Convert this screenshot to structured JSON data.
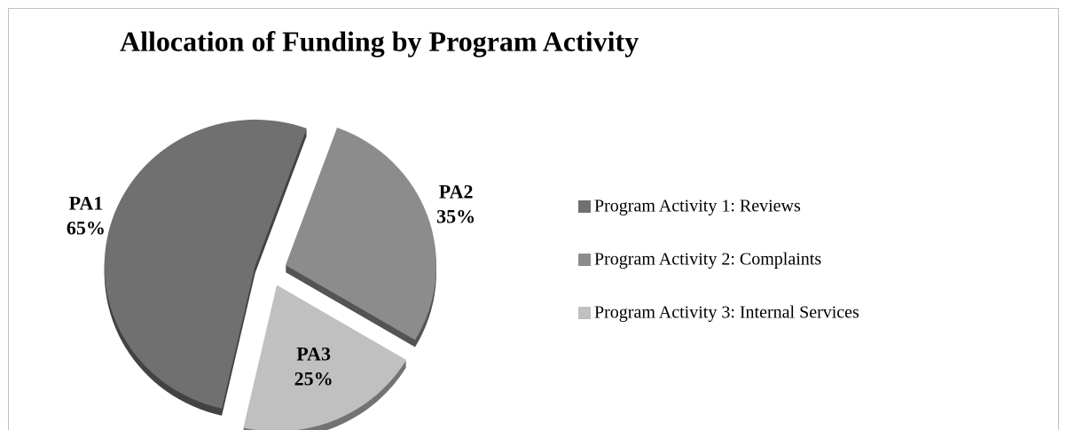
{
  "chart_data": {
    "type": "pie",
    "title": "Allocation of Funding by Program Activity",
    "categories": [
      "Program Activity 1: Reviews",
      "Program Activity 2: Complaints",
      "Program Activity 3: Internal Services"
    ],
    "labels": [
      "PA1",
      "PA2",
      "PA3"
    ],
    "values": [
      65,
      35,
      25
    ],
    "value_labels": [
      "65%",
      "35%",
      "25%"
    ],
    "colors": [
      "#707070",
      "#8c8c8c",
      "#c0c0c0"
    ],
    "legend": "right"
  }
}
